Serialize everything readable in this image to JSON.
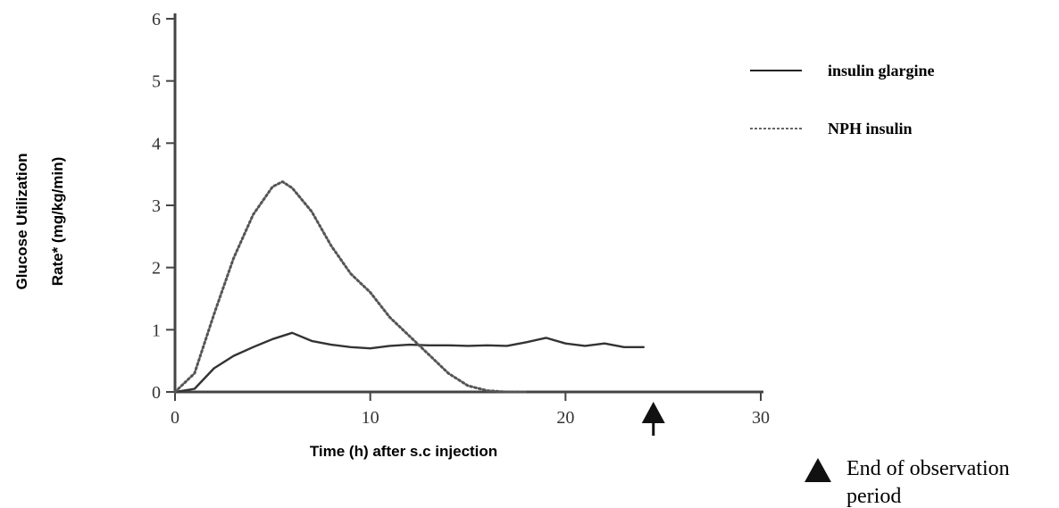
{
  "chart_data": {
    "type": "line",
    "title": "",
    "xlabel": "Time (h) after s.c injection",
    "ylabel": [
      "Glucose Utilization",
      "Rate* (mg/kg/min)"
    ],
    "xlim": [
      0,
      30
    ],
    "ylim": [
      0,
      6
    ],
    "x_ticks": [
      0,
      10,
      20,
      30
    ],
    "y_ticks": [
      0,
      1,
      2,
      3,
      4,
      5,
      6
    ],
    "grid": false,
    "legend_position": "top-right",
    "series": [
      {
        "name": "insulin glargine",
        "style": "solid",
        "color": "#333333",
        "x": [
          0,
          1,
          2,
          3,
          4,
          5,
          6,
          7,
          8,
          9,
          10,
          11,
          12,
          13,
          14,
          15,
          16,
          17,
          18,
          19,
          20,
          21,
          22,
          23,
          24
        ],
        "y": [
          0.0,
          0.05,
          0.38,
          0.58,
          0.72,
          0.85,
          0.95,
          0.82,
          0.76,
          0.72,
          0.7,
          0.74,
          0.76,
          0.75,
          0.75,
          0.74,
          0.75,
          0.74,
          0.8,
          0.87,
          0.78,
          0.74,
          0.78,
          0.72,
          0.72
        ]
      },
      {
        "name": "NPH insulin",
        "style": "dotted",
        "color": "#555555",
        "x": [
          0,
          1,
          2,
          3,
          4,
          5,
          5.5,
          6,
          7,
          8,
          9,
          10,
          11,
          12,
          13,
          14,
          15,
          16,
          17,
          18
        ],
        "y": [
          0.0,
          0.3,
          1.25,
          2.15,
          2.85,
          3.3,
          3.38,
          3.28,
          2.9,
          2.35,
          1.9,
          1.6,
          1.2,
          0.9,
          0.6,
          0.3,
          0.1,
          0.02,
          0.0,
          0.0
        ]
      }
    ],
    "annotations": {
      "end_marker_x": 24.5,
      "end_marker_icon": "triangle-up-icon",
      "end_marker_label": [
        "End of observation",
        "period"
      ]
    }
  }
}
